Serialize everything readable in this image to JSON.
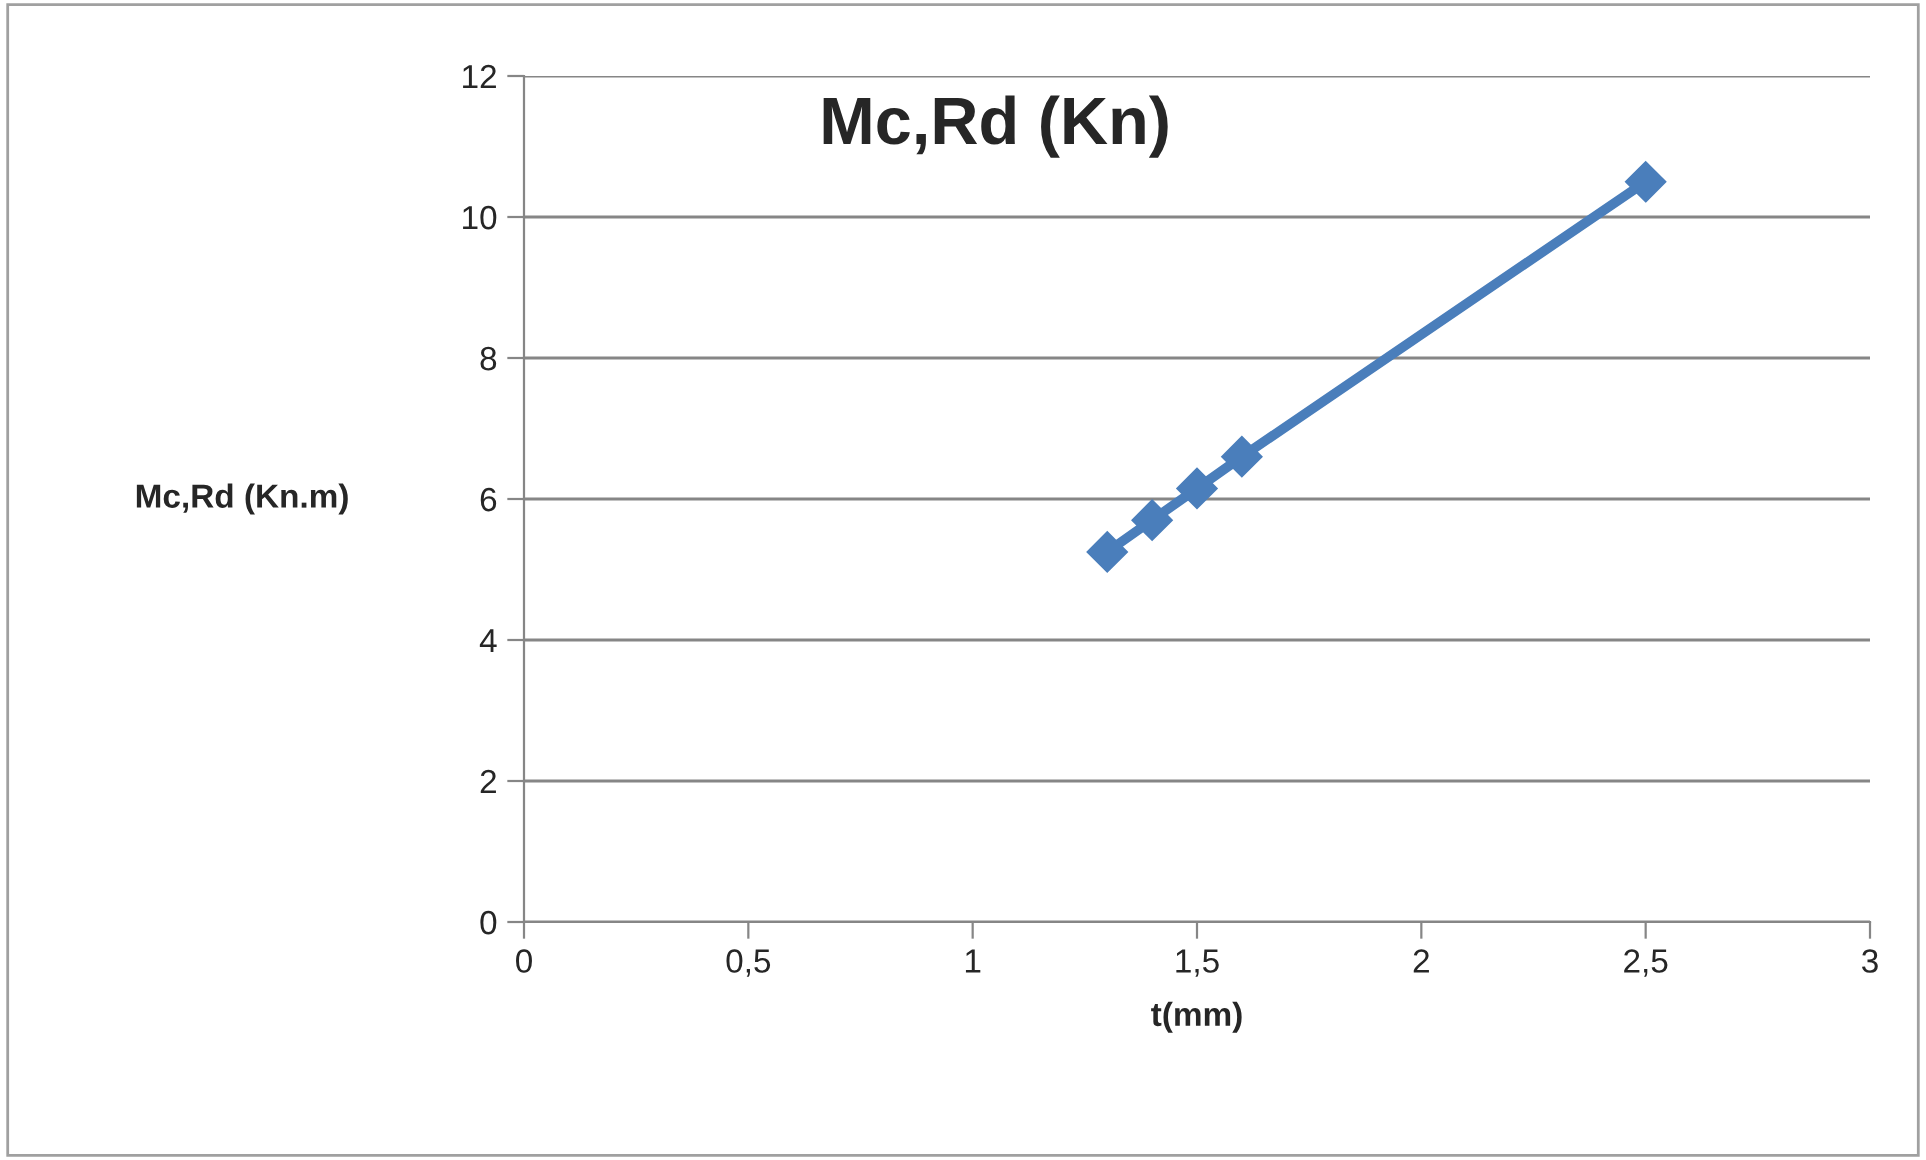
{
  "chart_data": {
    "type": "line",
    "title": "Mc,Rd (Kn)",
    "xlabel": "t(mm)",
    "ylabel": "Mc,Rd (Kn.m)",
    "x": [
      1.3,
      1.4,
      1.5,
      1.6,
      2.5
    ],
    "series": [
      {
        "color": "#4a7ebb",
        "values": [
          5.25,
          5.7,
          6.15,
          6.6,
          10.5
        ]
      }
    ],
    "xlim": [
      0,
      3
    ],
    "xticks": [
      {
        "value": 0,
        "label": "0"
      },
      {
        "value": 0.5,
        "label": "0,5"
      },
      {
        "value": 1,
        "label": "1"
      },
      {
        "value": 1.5,
        "label": "1,5"
      },
      {
        "value": 2,
        "label": "2"
      },
      {
        "value": 2.5,
        "label": "2,5"
      },
      {
        "value": 3,
        "label": "3"
      }
    ],
    "ylim": [
      0,
      12
    ],
    "yticks": [
      0,
      2,
      4,
      6,
      8,
      10,
      12
    ],
    "grid": "y",
    "marker": "diamond",
    "line_style": "solid",
    "legend": false
  }
}
